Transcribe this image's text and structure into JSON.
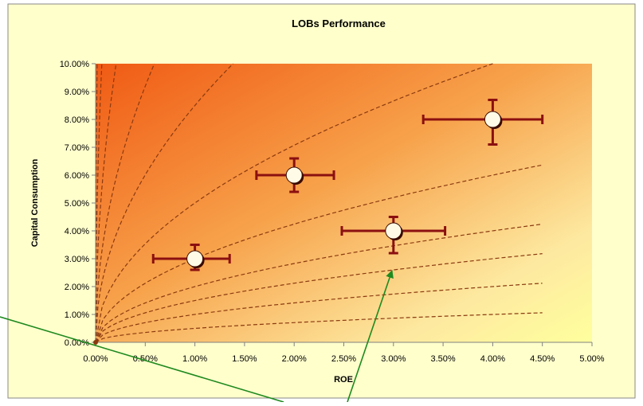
{
  "chart_data": {
    "type": "scatter",
    "title": "LOBs Performance",
    "xlabel": "ROE",
    "ylabel": "Capital Consumption",
    "xlim": [
      0,
      0.05
    ],
    "ylim": [
      0,
      0.1
    ],
    "x_ticks": [
      "0.00%",
      "0.50%",
      "1.00%",
      "1.50%",
      "2.00%",
      "2.50%",
      "3.00%",
      "3.50%",
      "4.00%",
      "4.50%",
      "5.00%"
    ],
    "y_ticks": [
      "0.00%",
      "1.00%",
      "2.00%",
      "3.00%",
      "4.00%",
      "5.00%",
      "6.00%",
      "7.00%",
      "8.00%",
      "9.00%",
      "10.00%"
    ],
    "grid": false,
    "legend": "none",
    "points": [
      {
        "x": 0.01,
        "y": 0.03,
        "x_low": 0.0058,
        "x_high": 0.0135,
        "y_low": 0.026,
        "y_high": 0.035
      },
      {
        "x": 0.02,
        "y": 0.06,
        "x_low": 0.0162,
        "x_high": 0.024,
        "y_low": 0.054,
        "y_high": 0.066
      },
      {
        "x": 0.03,
        "y": 0.04,
        "x_low": 0.0248,
        "x_high": 0.0352,
        "y_low": 0.032,
        "y_high": 0.045
      },
      {
        "x": 0.04,
        "y": 0.08,
        "x_low": 0.033,
        "x_high": 0.045,
        "y_low": 0.071,
        "y_high": 0.087
      }
    ],
    "iso_curve_factors": [
      0.05,
      0.1,
      0.15,
      0.2,
      0.3,
      0.5,
      0.85,
      1.3,
      2.2,
      4.0,
      8.0
    ],
    "colors": {
      "frame_background": "#ffffcc",
      "plot_gradient": [
        "#f05a14",
        "#f7a24b",
        "#fde9a0",
        "#ffff9e"
      ],
      "curves": "#8b3a10",
      "error_bars": "#8b1010",
      "marker_fill": "#fffbe6",
      "marker_outline": "#3a0a00",
      "arrows": "#1f8a1f"
    }
  }
}
